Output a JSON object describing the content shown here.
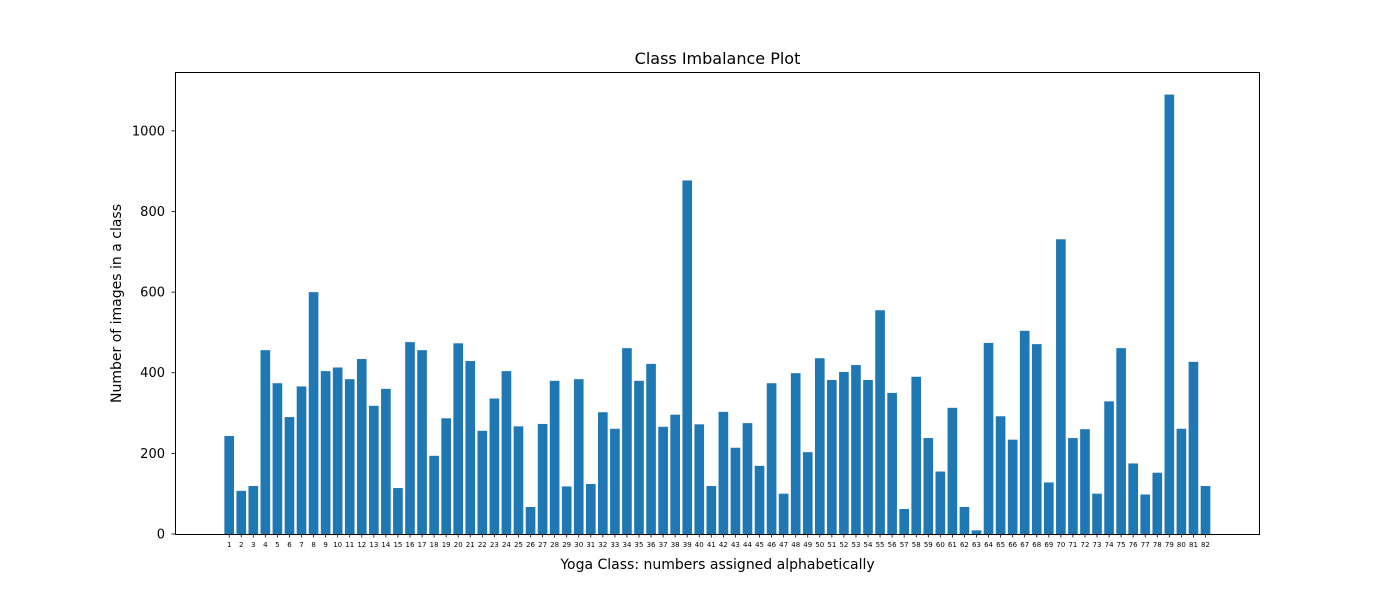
{
  "chart_data": {
    "type": "bar",
    "title": "Class Imbalance Plot",
    "xlabel": "Yoga Class: numbers assigned alphabetically",
    "ylabel": "Number of images in a class",
    "ylim": [
      0,
      1146
    ],
    "yticks": [
      0,
      200,
      400,
      600,
      800,
      1000
    ],
    "grid": false,
    "bar_color": "#1f77b4",
    "categories": [
      "1",
      "2",
      "3",
      "4",
      "5",
      "6",
      "7",
      "8",
      "9",
      "10",
      "11",
      "12",
      "13",
      "14",
      "15",
      "16",
      "17",
      "18",
      "19",
      "20",
      "21",
      "22",
      "23",
      "24",
      "25",
      "26",
      "27",
      "28",
      "29",
      "30",
      "31",
      "32",
      "33",
      "34",
      "35",
      "36",
      "37",
      "38",
      "39",
      "40",
      "41",
      "42",
      "43",
      "44",
      "45",
      "46",
      "47",
      "48",
      "49",
      "50",
      "51",
      "52",
      "53",
      "54",
      "55",
      "56",
      "57",
      "58",
      "59",
      "60",
      "61",
      "62",
      "63",
      "64",
      "65",
      "66",
      "67",
      "68",
      "69",
      "70",
      "71",
      "72",
      "73",
      "74",
      "75",
      "76",
      "77",
      "78",
      "79",
      "80",
      "81",
      "82"
    ],
    "values": [
      243,
      107,
      119,
      456,
      374,
      290,
      366,
      600,
      404,
      413,
      384,
      434,
      318,
      360,
      114,
      476,
      456,
      194,
      287,
      473,
      429,
      256,
      336,
      404,
      267,
      67,
      273,
      380,
      118,
      384,
      124,
      302,
      261,
      461,
      380,
      422,
      266,
      296,
      877,
      272,
      119,
      303,
      214,
      275,
      169,
      374,
      100,
      399,
      203,
      436,
      382,
      402,
      419,
      382,
      555,
      350,
      62,
      390,
      238,
      155,
      313,
      67,
      9,
      474,
      292,
      234,
      504,
      471,
      128,
      731,
      238,
      260,
      100,
      329,
      461,
      175,
      98,
      152,
      1090,
      261,
      427,
      119
    ]
  }
}
